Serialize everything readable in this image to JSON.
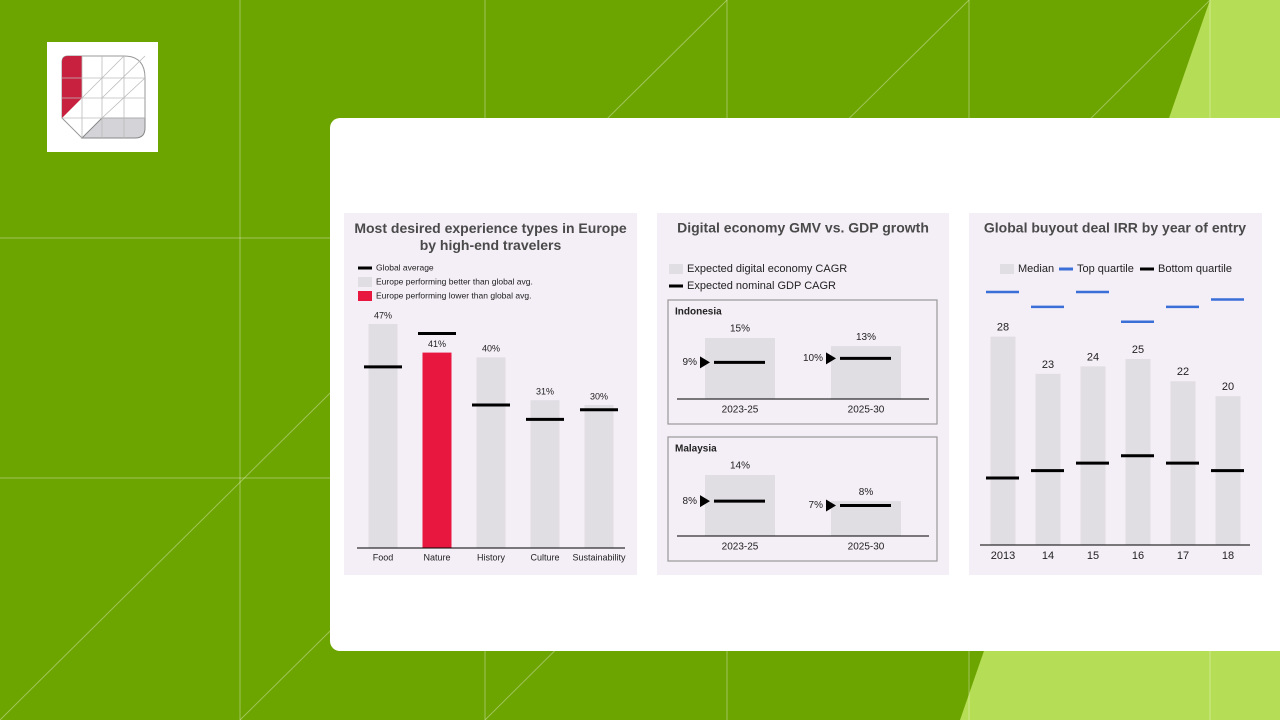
{
  "chart_data": [
    {
      "type": "bar_marker",
      "title": "Most desired experience types in Europe by high-end travelers",
      "legend": [
        {
          "name": "Global average",
          "color": "#000000",
          "shape": "line"
        },
        {
          "name": "Europe performing better than global avg.",
          "color": "#e0dde3",
          "shape": "box"
        },
        {
          "name": "Europe performing lower than global avg.",
          "color": "#e8173f",
          "shape": "box"
        }
      ],
      "categories": [
        "Food",
        "Nature",
        "History",
        "Culture",
        "Sustainability"
      ],
      "values": [
        47,
        41,
        40,
        31,
        30
      ],
      "value_labels": [
        "47%",
        "41%",
        "40%",
        "31%",
        "30%"
      ],
      "bar_colors": [
        "#e0dde3",
        "#e8173f",
        "#e0dde3",
        "#e0dde3",
        "#e0dde3"
      ],
      "markers": {
        "values": [
          38,
          45,
          30,
          27,
          29
        ],
        "color": "#000000"
      }
    },
    {
      "type": "bar_panels",
      "title": "Digital economy GMV vs. GDP growth",
      "legend": [
        {
          "name": "Expected digital economy CAGR",
          "color": "#e0dde3",
          "shape": "box"
        },
        {
          "name": "Expected nominal GDP CAGR",
          "color": "#000000",
          "shape": "line"
        }
      ],
      "categories": [
        "2023-25",
        "2025-30"
      ],
      "panels": [
        {
          "title": "Indonesia",
          "values": [
            15,
            13
          ],
          "value_labels": [
            "15%",
            "13%"
          ],
          "markers": [
            9,
            10
          ],
          "marker_labels": [
            "9%",
            "10%"
          ]
        },
        {
          "title": "Malaysia",
          "values": [
            14,
            8
          ],
          "value_labels": [
            "14%",
            "8%"
          ],
          "markers": [
            8,
            7
          ],
          "marker_labels": [
            "8%",
            "7%"
          ]
        }
      ]
    },
    {
      "type": "bar_range",
      "title": "Global buyout deal IRR by year of entry",
      "categories": [
        "2013",
        "14",
        "15",
        "16",
        "17",
        "18"
      ],
      "series": [
        {
          "name": "Median",
          "color": "#e0dde3",
          "values": [
            28,
            23,
            24,
            25,
            22,
            20
          ]
        },
        {
          "name": "Top quartile",
          "color": "#3a6fd8",
          "values": [
            34,
            32,
            34,
            30,
            32,
            33
          ]
        },
        {
          "name": "Bottom quartile",
          "color": "#000000",
          "values": [
            9,
            10,
            11,
            12,
            11,
            10
          ]
        }
      ]
    }
  ]
}
